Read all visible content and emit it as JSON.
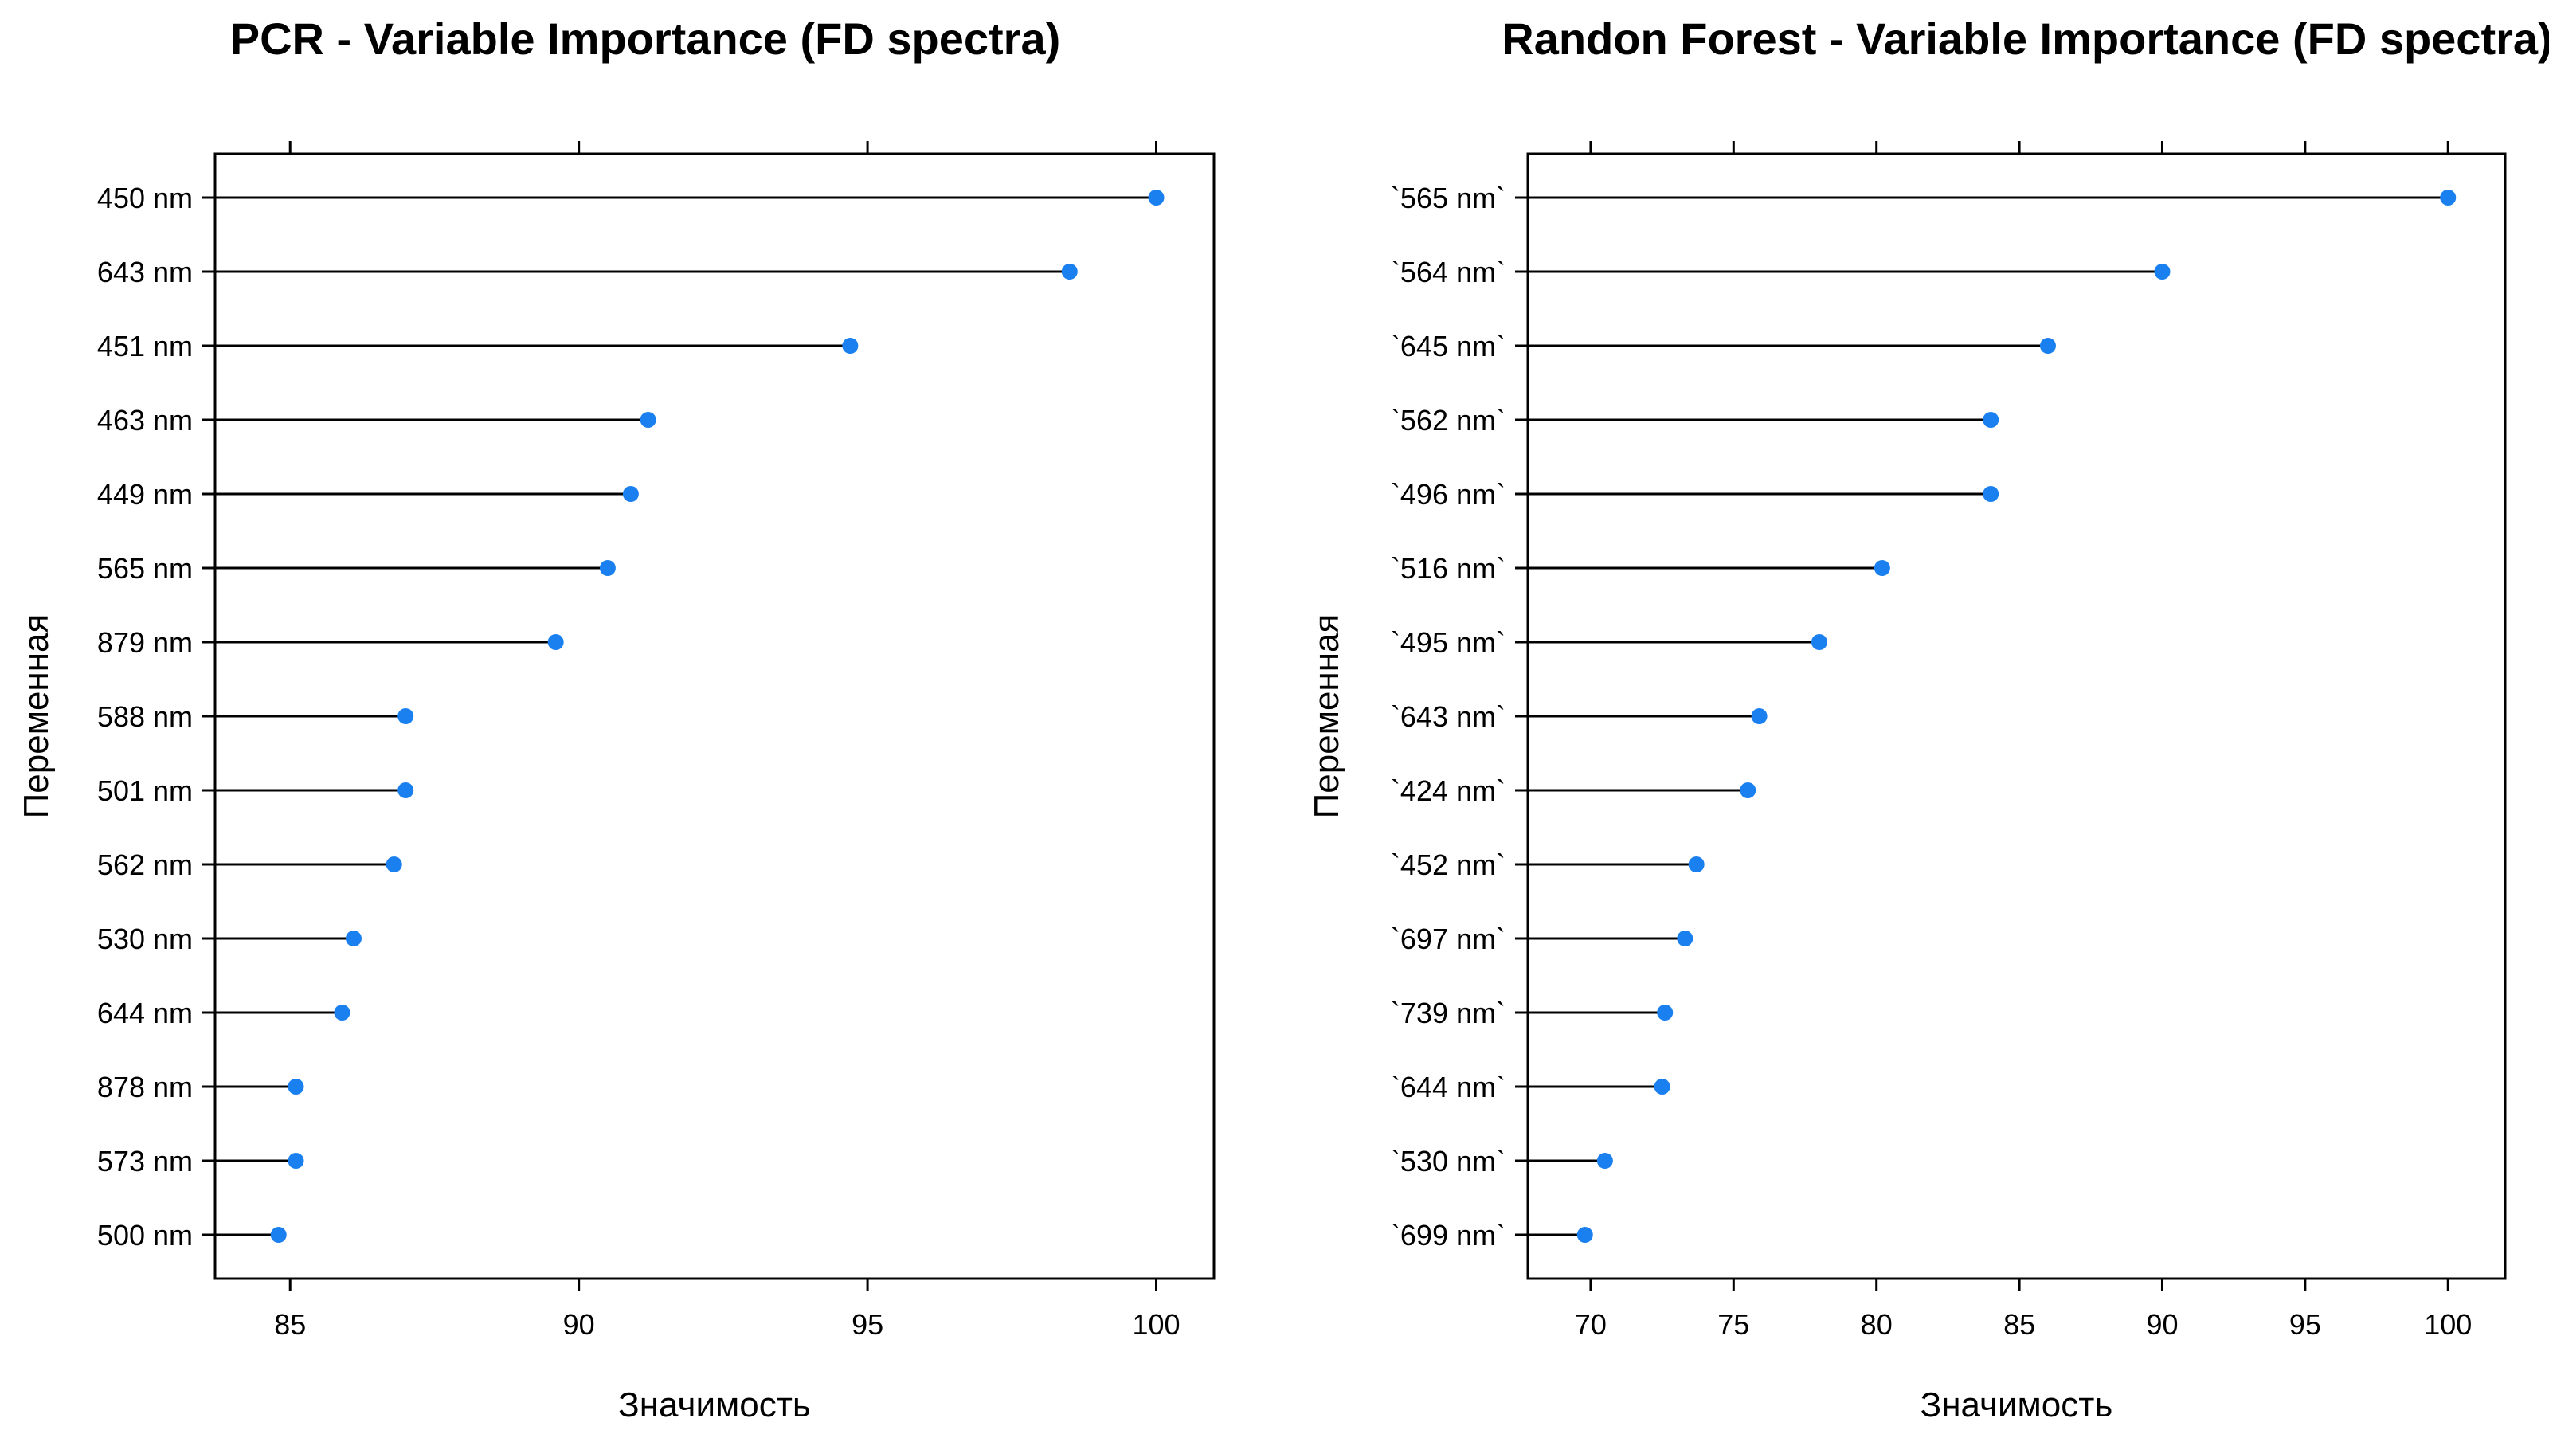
{
  "chart_data": [
    {
      "type": "dot",
      "title": "PCR - Variable Importance (FD spectra)",
      "xlabel": "Значимость",
      "ylabel": "Переменная",
      "xlim": [
        83.7,
        101.0
      ],
      "xticks": [
        85,
        90,
        95,
        100
      ],
      "grid": false,
      "categories": [
        "450 nm",
        "643 nm",
        "451 nm",
        "463 nm",
        "449 nm",
        "565 nm",
        "879 nm",
        "588 nm",
        "501 nm",
        "562 nm",
        "530 nm",
        "644 nm",
        "878 nm",
        "573 nm",
        "500 nm"
      ],
      "values": [
        100.0,
        98.5,
        94.7,
        91.2,
        90.9,
        90.5,
        89.6,
        87.0,
        87.0,
        86.8,
        86.1,
        85.9,
        85.1,
        85.1,
        84.8
      ],
      "colors": {
        "point": "#1a80f0",
        "stem": "#000000"
      }
    },
    {
      "type": "dot",
      "title": "Randon Forest - Variable Importance (FD spectra)",
      "xlabel": "Значимость",
      "ylabel": "Переменная",
      "xlim": [
        67.8,
        102.0
      ],
      "xticks": [
        70,
        75,
        80,
        85,
        90,
        95,
        100
      ],
      "grid": false,
      "categories": [
        "`565 nm`",
        "`564 nm`",
        "`645 nm`",
        "`562 nm`",
        "`496 nm`",
        "`516 nm`",
        "`495 nm`",
        "`643 nm`",
        "`424 nm`",
        "`452 nm`",
        "`697 nm`",
        "`739 nm`",
        "`644 nm`",
        "`530 nm`",
        "`699 nm`"
      ],
      "values": [
        100.0,
        90.0,
        86.0,
        84.0,
        84.0,
        80.2,
        78.0,
        75.9,
        75.5,
        73.7,
        73.3,
        72.6,
        72.5,
        70.5,
        69.8
      ],
      "colors": {
        "point": "#1a80f0",
        "stem": "#000000"
      }
    }
  ]
}
